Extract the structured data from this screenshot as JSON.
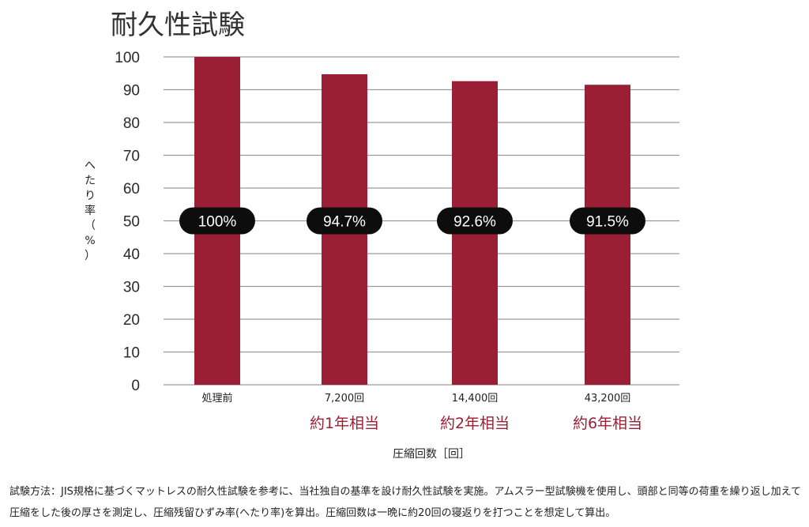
{
  "page": {
    "note": "試験方法：JIS規格に基づくマットレスの耐久性試験を参考に、当社独自の基準を設け耐久性試験を実施。アムスラー型試験機を使用し、頭部と同等の荷重を繰り返し加えて圧縮をした後の厚さを測定し、圧縮残留ひずみ率(へたり率)を算出。圧縮回数は一晩に約20回の寝返りを打つことを想定して算出。"
  },
  "colors": {
    "bar": "#9b1f34",
    "pill": "#0d0d0d",
    "grid": "#9a9a9a",
    "accent_text": "#9b1f34"
  },
  "chart_data": {
    "type": "bar",
    "title": "耐久性試験",
    "ylabel": "へたり率（%）",
    "xlabel": "圧縮回数［回］",
    "categories": [
      "処理前",
      "7,200回",
      "14,400回",
      "43,200回"
    ],
    "sub_labels": [
      "",
      "約1年相当",
      "約2年相当",
      "約6年相当"
    ],
    "values": [
      100,
      94.7,
      92.6,
      91.5
    ],
    "data_labels": [
      "100%",
      "94.7%",
      "92.6%",
      "91.5%"
    ],
    "ylim": [
      0,
      100
    ],
    "yticks": [
      0,
      10,
      20,
      30,
      40,
      50,
      60,
      70,
      80,
      90,
      100
    ],
    "grid": true,
    "legend": "none"
  }
}
